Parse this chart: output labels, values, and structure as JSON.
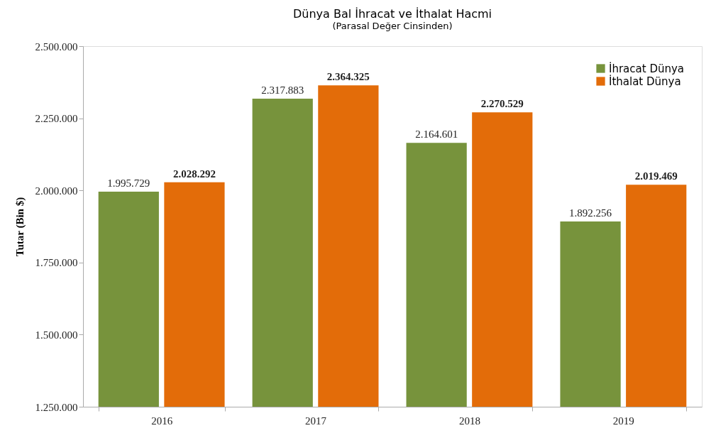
{
  "chart_data": {
    "type": "bar",
    "title": "Dünya Bal İhracat ve İthalat Hacmi",
    "subtitle": "(Parasal Değer Cinsinden)",
    "ylabel": "Tutar (Bin $)",
    "categories": [
      "2016",
      "2017",
      "2018",
      "2019"
    ],
    "series": [
      {
        "name": "İhracat Dünya",
        "color": "#77933c",
        "values": [
          1995729,
          2317883,
          2164601,
          1892256
        ],
        "value_labels": [
          "1.995.729",
          "2.317.883",
          "2.164.601",
          "1.892.256"
        ]
      },
      {
        "name": "İthalat Dünya",
        "color": "#e36c09",
        "values": [
          2028292,
          2364325,
          2270529,
          2019469
        ],
        "value_labels": [
          "2.028.292",
          "2.364.325",
          "2.270.529",
          "2.019.469"
        ]
      }
    ],
    "ylim": [
      1250000,
      2500000
    ],
    "yticks": [
      {
        "value": 1250000,
        "label": "1.250.000"
      },
      {
        "value": 1500000,
        "label": "1.500.000"
      },
      {
        "value": 1750000,
        "label": "1.750.000"
      },
      {
        "value": 2000000,
        "label": "2.000.000"
      },
      {
        "value": 2250000,
        "label": "2.250.000"
      },
      {
        "value": 2500000,
        "label": "2.500.000"
      }
    ],
    "grid": false,
    "legend": "top right"
  }
}
